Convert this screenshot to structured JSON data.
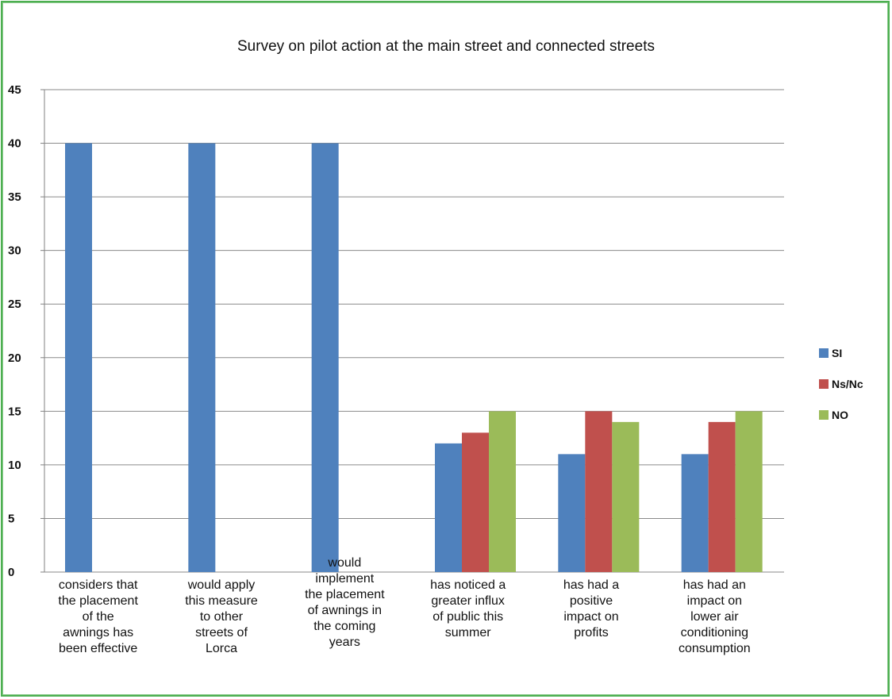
{
  "chart_data": {
    "type": "bar",
    "title": "Survey on pilot action at the main street and connected streets",
    "categories": [
      "considers that the placement of the awnings has been effective",
      "would apply this measure to other streets of Lorca",
      "would implement the placement of awnings in the coming years",
      "has noticed a greater influx of public this summer",
      "has had a positive impact on profits",
      "has had an impact on lower air conditioning consumption"
    ],
    "category_lines": [
      [
        "considers that",
        "the placement",
        "of the",
        "awnings has",
        "been effective"
      ],
      [
        "would apply",
        "this measure",
        "to other",
        "streets of",
        "Lorca"
      ],
      [
        "would",
        "implement",
        "the placement",
        "of awnings in",
        "the coming",
        "years"
      ],
      [
        "has noticed a",
        "greater influx",
        "of public this",
        "summer"
      ],
      [
        "has had a",
        "positive",
        "impact on",
        "profits"
      ],
      [
        "has had an",
        "impact on",
        "lower air",
        "conditioning",
        "consumption"
      ]
    ],
    "series": [
      {
        "name": "SI",
        "color": "#4f81bd",
        "values": [
          40,
          40,
          40,
          12,
          11,
          11
        ]
      },
      {
        "name": "Ns/Nc",
        "color": "#c0504d",
        "values": [
          0,
          0,
          0,
          13,
          15,
          14
        ]
      },
      {
        "name": "NO",
        "color": "#9bbb59",
        "values": [
          0,
          0,
          0,
          15,
          14,
          15
        ]
      }
    ],
    "ylim": [
      0,
      45
    ],
    "yticks": [
      0,
      5,
      10,
      15,
      20,
      25,
      30,
      35,
      40,
      45
    ],
    "grid": true,
    "legend_position": "right",
    "xlabel": "",
    "ylabel": ""
  }
}
